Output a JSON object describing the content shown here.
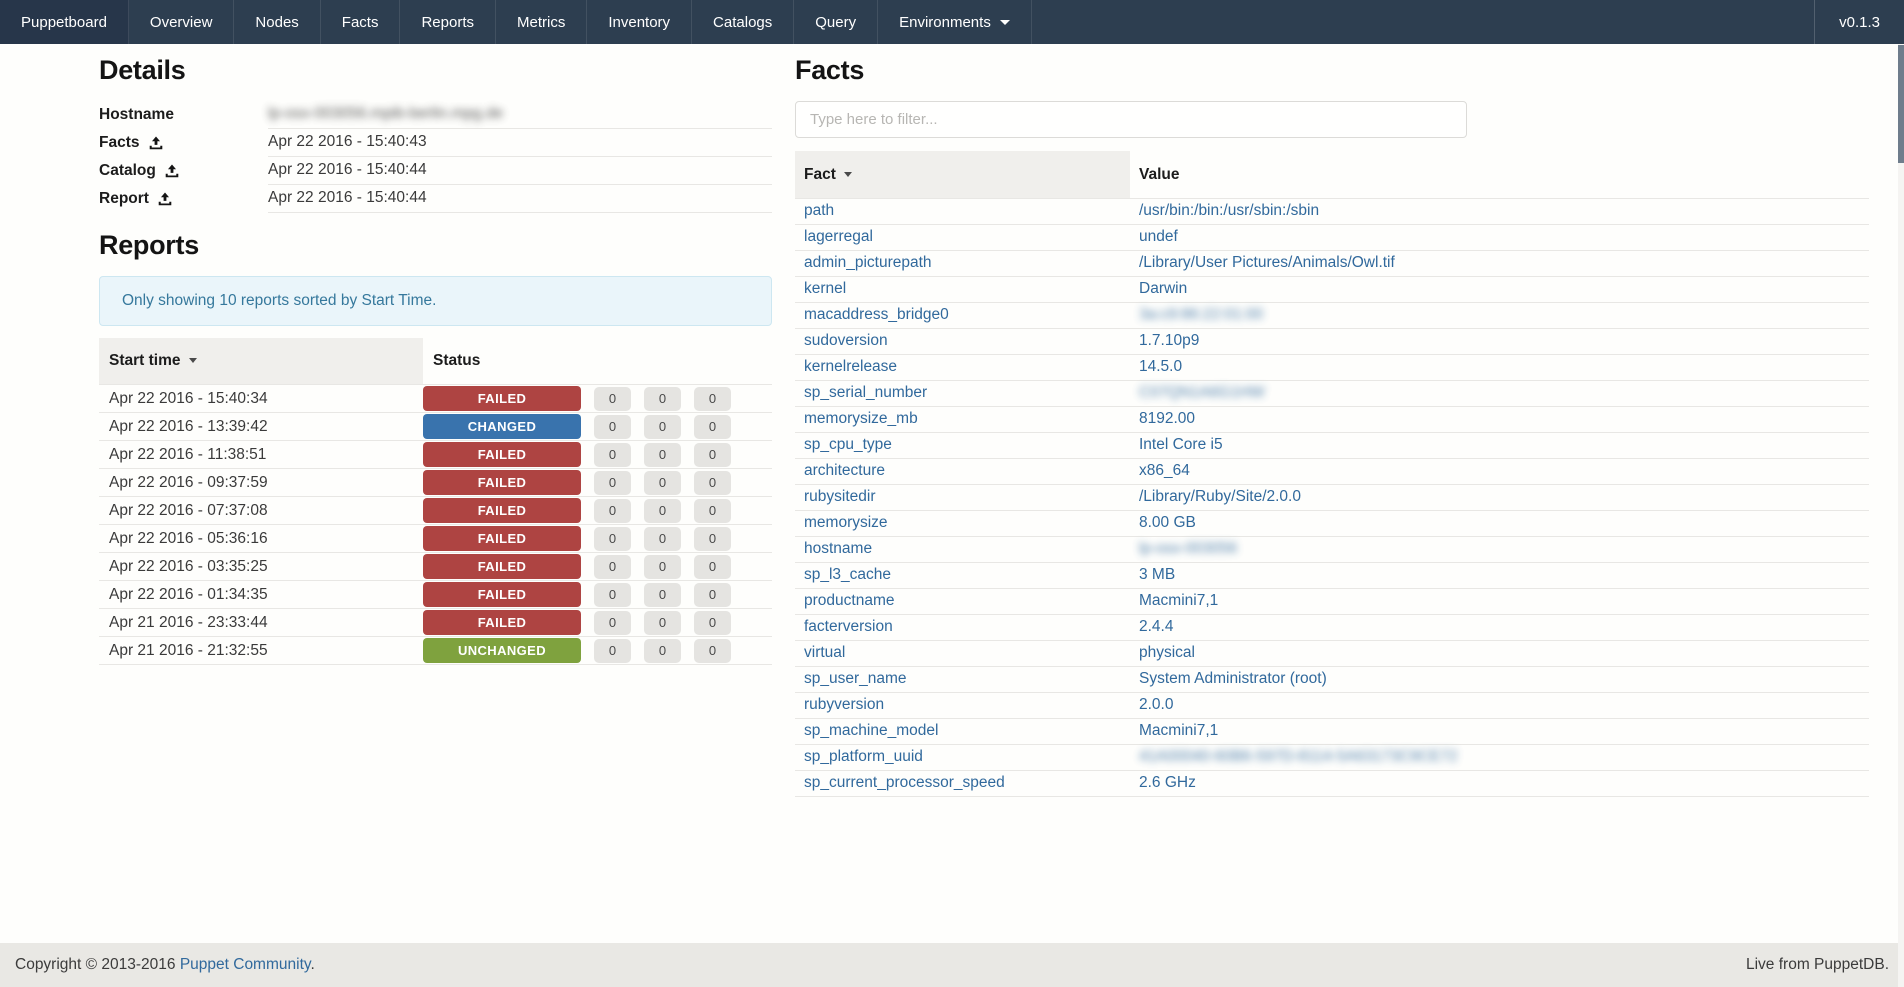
{
  "navbar": {
    "brand": "Puppetboard",
    "items": [
      "Overview",
      "Nodes",
      "Facts",
      "Reports",
      "Metrics",
      "Inventory",
      "Catalogs",
      "Query"
    ],
    "environments": "Environments",
    "version": "v0.1.3"
  },
  "details": {
    "title": "Details",
    "rows": [
      {
        "label": "Hostname",
        "upload_icon": false,
        "value": "lp-osx-003056.mpib-berlin.mpg.de",
        "blurred": true
      },
      {
        "label": "Facts",
        "upload_icon": true,
        "value": "Apr 22 2016 - 15:40:43",
        "blurred": false
      },
      {
        "label": "Catalog",
        "upload_icon": true,
        "value": "Apr 22 2016 - 15:40:44",
        "blurred": false
      },
      {
        "label": "Report",
        "upload_icon": true,
        "value": "Apr 22 2016 - 15:40:44",
        "blurred": false
      }
    ]
  },
  "reports": {
    "title": "Reports",
    "alert_text": "Only showing 10 reports sorted by Start Time.",
    "columns": {
      "start_time": "Start time",
      "status": "Status"
    },
    "rows": [
      {
        "start_time": "Apr 22 2016 - 15:40:34",
        "status": "FAILED",
        "counts": [
          "0",
          "0",
          "0"
        ]
      },
      {
        "start_time": "Apr 22 2016 - 13:39:42",
        "status": "CHANGED",
        "counts": [
          "0",
          "0",
          "0"
        ]
      },
      {
        "start_time": "Apr 22 2016 - 11:38:51",
        "status": "FAILED",
        "counts": [
          "0",
          "0",
          "0"
        ]
      },
      {
        "start_time": "Apr 22 2016 - 09:37:59",
        "status": "FAILED",
        "counts": [
          "0",
          "0",
          "0"
        ]
      },
      {
        "start_time": "Apr 22 2016 - 07:37:08",
        "status": "FAILED",
        "counts": [
          "0",
          "0",
          "0"
        ]
      },
      {
        "start_time": "Apr 22 2016 - 05:36:16",
        "status": "FAILED",
        "counts": [
          "0",
          "0",
          "0"
        ]
      },
      {
        "start_time": "Apr 22 2016 - 03:35:25",
        "status": "FAILED",
        "counts": [
          "0",
          "0",
          "0"
        ]
      },
      {
        "start_time": "Apr 22 2016 - 01:34:35",
        "status": "FAILED",
        "counts": [
          "0",
          "0",
          "0"
        ]
      },
      {
        "start_time": "Apr 21 2016 - 23:33:44",
        "status": "FAILED",
        "counts": [
          "0",
          "0",
          "0"
        ]
      },
      {
        "start_time": "Apr 21 2016 - 21:32:55",
        "status": "UNCHANGED",
        "counts": [
          "0",
          "0",
          "0"
        ]
      }
    ]
  },
  "facts": {
    "title": "Facts",
    "filter_placeholder": "Type here to filter...",
    "columns": {
      "fact": "Fact",
      "value": "Value"
    },
    "rows": [
      {
        "fact": "path",
        "value": "/usr/bin:/bin:/usr/sbin:/sbin",
        "blurred": false
      },
      {
        "fact": "lagerregal",
        "value": "undef",
        "blurred": false
      },
      {
        "fact": "admin_picturepath",
        "value": "/Library/User Pictures/Animals/Owl.tif",
        "blurred": false
      },
      {
        "fact": "kernel",
        "value": "Darwin",
        "blurred": false
      },
      {
        "fact": "macaddress_bridge0",
        "value": "3a:c9:86:22:01:00",
        "blurred": true
      },
      {
        "fact": "sudoversion",
        "value": "1.7.10p9",
        "blurred": false
      },
      {
        "fact": "kernelrelease",
        "value": "14.5.0",
        "blurred": false
      },
      {
        "fact": "sp_serial_number",
        "value": "C07QN1A6G1HW",
        "blurred": true
      },
      {
        "fact": "memorysize_mb",
        "value": "8192.00",
        "blurred": false
      },
      {
        "fact": "sp_cpu_type",
        "value": "Intel Core i5",
        "blurred": false
      },
      {
        "fact": "architecture",
        "value": "x86_64",
        "blurred": false
      },
      {
        "fact": "rubysitedir",
        "value": "/Library/Ruby/Site/2.0.0",
        "blurred": false
      },
      {
        "fact": "memorysize",
        "value": "8.00 GB",
        "blurred": false
      },
      {
        "fact": "hostname",
        "value": "lp-osx-003056",
        "blurred": true
      },
      {
        "fact": "sp_l3_cache",
        "value": "3 MB",
        "blurred": false
      },
      {
        "fact": "productname",
        "value": "Macmini7,1",
        "blurred": false
      },
      {
        "fact": "facterversion",
        "value": "2.4.4",
        "blurred": false
      },
      {
        "fact": "virtual",
        "value": "physical",
        "blurred": false
      },
      {
        "fact": "sp_user_name",
        "value": "System Administrator (root)",
        "blurred": false
      },
      {
        "fact": "rubyversion",
        "value": "2.0.0",
        "blurred": false
      },
      {
        "fact": "sp_machine_model",
        "value": "Macmini7,1",
        "blurred": false
      },
      {
        "fact": "sp_platform_uuid",
        "value": "41A00040-60B6-597D-8114-5A63173C9CE72",
        "blurred": true
      },
      {
        "fact": "sp_current_processor_speed",
        "value": "2.6 GHz",
        "blurred": false
      }
    ]
  },
  "footer": {
    "copyright_prefix": "Copyright © 2013-2016 ",
    "copyright_link": "Puppet Community",
    "copyright_suffix": ".",
    "live_text": "Live from PuppetDB."
  },
  "colors": {
    "navbar_bg": "#2d3e50",
    "link_blue": "#31699c",
    "status_failed": "#ae4442",
    "status_changed": "#3973ad",
    "status_unchanged": "#7fa23e",
    "alert_bg": "#eaf5fa",
    "alert_border": "#cde7f1",
    "alert_text": "#35789c",
    "header_cell_bg": "#f0efec",
    "footer_bg": "#e9e8e4"
  }
}
